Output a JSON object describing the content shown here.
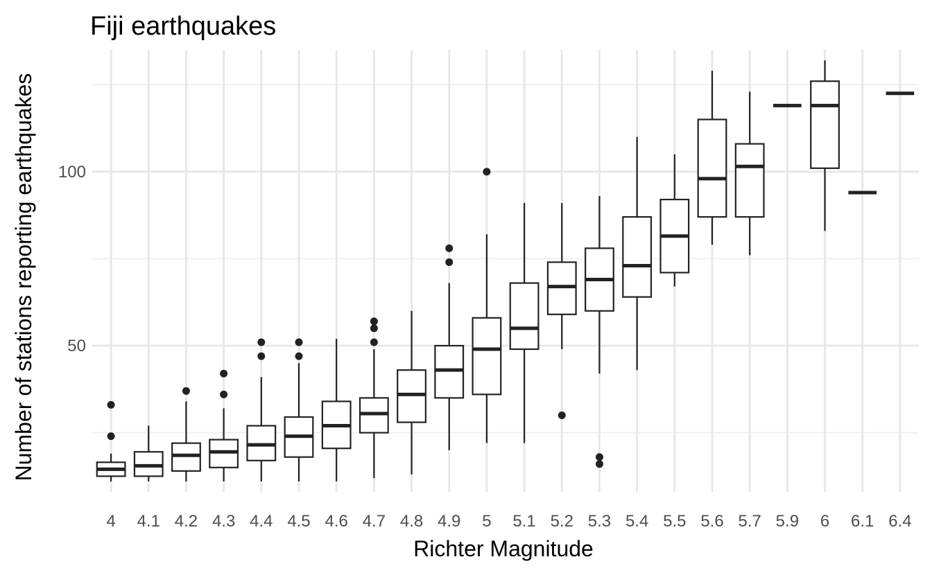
{
  "chart_data": {
    "type": "boxplot",
    "title": "Fiji earthquakes",
    "xlabel": "Richter Magnitude",
    "ylabel": "Number of stations reporting earthquakes",
    "y_ticks": [
      50,
      100
    ],
    "ylim": [
      8,
      135
    ],
    "grid": true,
    "categories": [
      "4",
      "4.1",
      "4.2",
      "4.3",
      "4.4",
      "4.5",
      "4.6",
      "4.7",
      "4.8",
      "4.9",
      "5",
      "5.1",
      "5.2",
      "5.3",
      "5.4",
      "5.5",
      "5.6",
      "5.7",
      "5.9",
      "6",
      "6.1",
      "6.4"
    ],
    "boxes": [
      {
        "min": 11,
        "q1": 12.5,
        "median": 14.5,
        "q3": 16.5,
        "max": 19,
        "outliers": [
          24,
          33
        ]
      },
      {
        "min": 11,
        "q1": 12.5,
        "median": 15.5,
        "q3": 19.5,
        "max": 27,
        "outliers": []
      },
      {
        "min": 11,
        "q1": 14,
        "median": 18.5,
        "q3": 22,
        "max": 34,
        "outliers": [
          37
        ]
      },
      {
        "min": 11,
        "q1": 15,
        "median": 19.5,
        "q3": 23,
        "max": 32,
        "outliers": [
          36,
          42
        ]
      },
      {
        "min": 11,
        "q1": 17,
        "median": 21.5,
        "q3": 27,
        "max": 41,
        "outliers": [
          47,
          51
        ]
      },
      {
        "min": 11,
        "q1": 18,
        "median": 24,
        "q3": 29.5,
        "max": 45,
        "outliers": [
          47,
          51
        ]
      },
      {
        "min": 11,
        "q1": 20.5,
        "median": 27,
        "q3": 34,
        "max": 52,
        "outliers": []
      },
      {
        "min": 12,
        "q1": 25,
        "median": 30.5,
        "q3": 35,
        "max": 49,
        "outliers": [
          51,
          55,
          57
        ]
      },
      {
        "min": 13,
        "q1": 28,
        "median": 36,
        "q3": 43,
        "max": 60,
        "outliers": []
      },
      {
        "min": 20,
        "q1": 35,
        "median": 43,
        "q3": 50,
        "max": 68,
        "outliers": [
          74,
          78
        ]
      },
      {
        "min": 22,
        "q1": 36,
        "median": 49,
        "q3": 58,
        "max": 82,
        "outliers": [
          100
        ]
      },
      {
        "min": 22,
        "q1": 49,
        "median": 55,
        "q3": 68,
        "max": 91,
        "outliers": []
      },
      {
        "min": 49,
        "q1": 59,
        "median": 67,
        "q3": 74,
        "max": 91,
        "outliers": [
          30
        ]
      },
      {
        "min": 42,
        "q1": 60,
        "median": 69,
        "q3": 78,
        "max": 93,
        "outliers": [
          16,
          18
        ]
      },
      {
        "min": 43,
        "q1": 64,
        "median": 73,
        "q3": 87,
        "max": 110,
        "outliers": []
      },
      {
        "min": 67,
        "q1": 71,
        "median": 81.5,
        "q3": 92,
        "max": 105,
        "outliers": []
      },
      {
        "min": 79,
        "q1": 87,
        "median": 98,
        "q3": 115,
        "max": 129,
        "outliers": []
      },
      {
        "min": 76,
        "q1": 87,
        "median": 101.5,
        "q3": 108,
        "max": 123,
        "outliers": []
      },
      {
        "min": 119,
        "q1": 119,
        "median": 119,
        "q3": 119,
        "max": 119,
        "outliers": []
      },
      {
        "min": 83,
        "q1": 101,
        "median": 119,
        "q3": 126,
        "max": 132,
        "outliers": []
      },
      {
        "min": 94,
        "q1": 94,
        "median": 94,
        "q3": 94,
        "max": 94,
        "outliers": []
      },
      {
        "min": 122.5,
        "q1": 122.5,
        "median": 122.5,
        "q3": 122.5,
        "max": 122.5,
        "outliers": []
      }
    ]
  }
}
